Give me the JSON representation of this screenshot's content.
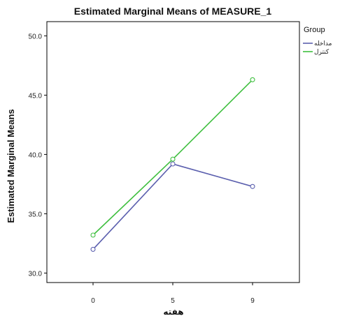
{
  "chart_data": {
    "type": "line",
    "title": "Estimated Marginal Means of MEASURE_1",
    "xlabel": "هفته",
    "ylabel": "Estimated Marginal Means",
    "categories": [
      "0",
      "5",
      "9"
    ],
    "ylim": [
      29.2,
      51.2
    ],
    "yticks": [
      30.0,
      35.0,
      40.0,
      45.0,
      50.0
    ],
    "ytick_labels": [
      "30.0",
      "35.0",
      "40.0",
      "45.0",
      "50.0"
    ],
    "grid": false,
    "legend_title": "Group",
    "legend_position": "top-right",
    "series": [
      {
        "name": "مداخله",
        "color": "#5b5fae",
        "values": [
          32.0,
          39.2,
          37.3
        ]
      },
      {
        "name": "کنترل",
        "color": "#3fbf3f",
        "values": [
          33.2,
          39.6,
          46.3
        ]
      }
    ]
  }
}
